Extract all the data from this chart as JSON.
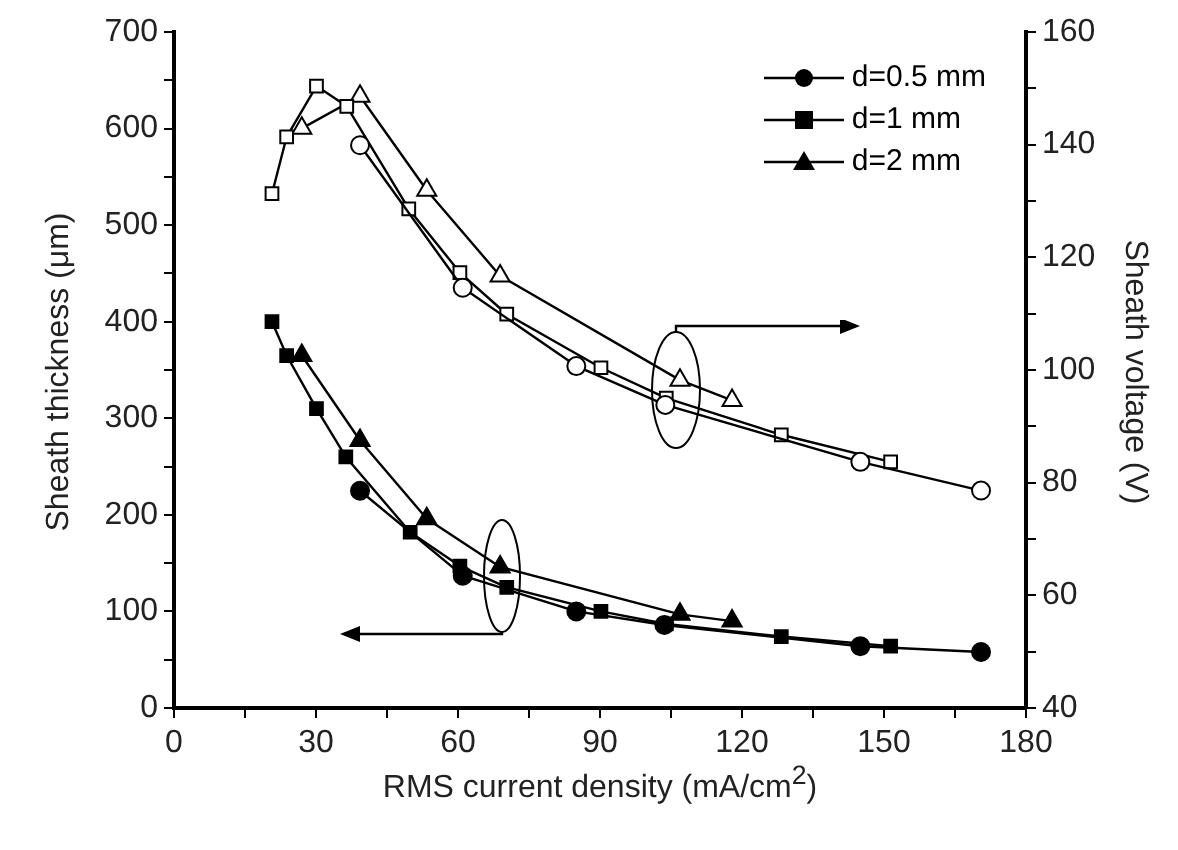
{
  "chart_data": {
    "type": "line",
    "xlabel": "RMS current density (mA/cm$^{2}$)",
    "ylabel": "Sheath thickness (μm)",
    "y2label": "Sheath voltage (V)",
    "xlim": [
      0,
      180
    ],
    "xticks": [
      0,
      {
        "value": 15,
        "label": null
      },
      30,
      {
        "value": 45,
        "label": null
      },
      60,
      {
        "value": 75,
        "label": null
      },
      90,
      {
        "value": 105,
        "label": null
      },
      120,
      {
        "value": 135,
        "label": null
      },
      150,
      {
        "value": 165,
        "label": null
      },
      180
    ],
    "ylim": [
      0,
      700
    ],
    "yticks": [
      0,
      {
        "value": 50,
        "label": null
      },
      100,
      {
        "value": 150,
        "label": null
      },
      200,
      {
        "value": 250,
        "label": null
      },
      300,
      {
        "value": 350,
        "label": null
      },
      400,
      {
        "value": 450,
        "label": null
      },
      500,
      {
        "value": 550,
        "label": null
      },
      600,
      {
        "value": 650,
        "label": null
      },
      700
    ],
    "y2lim": [
      40,
      160
    ],
    "y2ticks": [
      40,
      {
        "value": 50,
        "label": null
      },
      60,
      {
        "value": 70,
        "label": null
      },
      80,
      {
        "value": 90,
        "label": null
      },
      100,
      {
        "value": 110,
        "label": null
      },
      120,
      {
        "value": 130,
        "label": null
      },
      140,
      {
        "value": 150,
        "label": null
      },
      160
    ],
    "grid": false,
    "legend": "top right",
    "line_style": "solid",
    "series": [
      {
        "name": "d=0.5 mm",
        "color": "#000000",
        "marker": "circle",
        "x": [
          39.3,
          61,
          85,
          103.6,
          145,
          170.5
        ],
        "values": [
          225,
          137,
          100,
          86,
          64,
          58
        ]
      },
      {
        "name": "d=1 mm",
        "color": "#000000",
        "marker": "square",
        "x": [
          20.7,
          23.8,
          30.1,
          36.3,
          49.9,
          60.4,
          70.3,
          90.2,
          104,
          128.3,
          151.4
        ],
        "values": [
          400,
          365,
          310,
          260,
          182,
          147,
          125,
          100,
          87,
          74,
          64
        ]
      },
      {
        "name": "d=2 mm",
        "color": "#000000",
        "marker": "triangle",
        "x": [
          27,
          39.3,
          53.4,
          68.9,
          106.9,
          117.9
        ],
        "values": [
          365,
          277,
          196,
          146,
          97,
          90
        ]
      },
      {
        "color": "#000000",
        "marker": "circle",
        "axis": "y2",
        "x": [
          39.3,
          61,
          85,
          103.8,
          145,
          170.5
        ],
        "values": [
          139.9,
          114.6,
          100.7,
          93.8,
          83.7,
          78.6
        ]
      },
      {
        "color": "#000000",
        "marker": "square",
        "axis": "y2",
        "x": [
          20.7,
          23.8,
          30.1,
          36.5,
          49.6,
          60.4,
          70.3,
          90.2,
          104,
          128.3,
          151.4
        ],
        "values": [
          131.3,
          141.4,
          150.4,
          146.8,
          128.6,
          117.3,
          109.9,
          100.4,
          95,
          88.5,
          83.7
        ]
      },
      {
        "color": "#000000",
        "marker": "triangle",
        "axis": "y2",
        "x": [
          27,
          39.3,
          53.4,
          68.9,
          106.9,
          117.9
        ],
        "values": [
          142.9,
          148.6,
          131.9,
          116.7,
          98.2,
          94.6
        ]
      }
    ]
  }
}
